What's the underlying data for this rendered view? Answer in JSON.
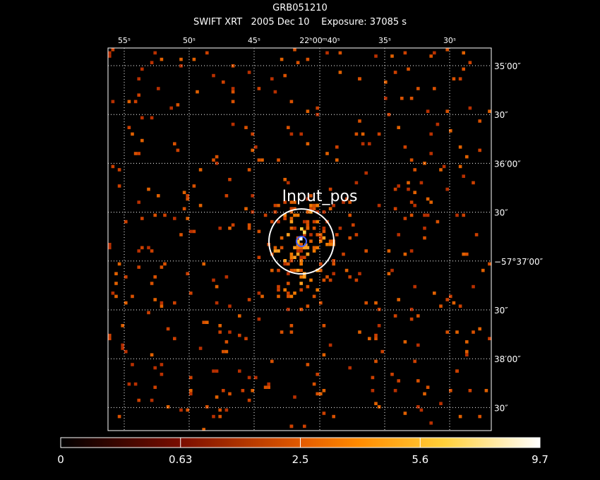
{
  "header": {
    "title": "GRB051210",
    "subtitle": "SWIFT XRT   2005 Dec 10    Exposure: 37085 s"
  },
  "ra_labels": [
    "55ˢ",
    "50ˢ",
    "45ˢ",
    "22ʰ00ᵐ40ˢ",
    "35ˢ",
    "30ˢ"
  ],
  "dec_labels": [
    "35′00″",
    "30″",
    "36′00″",
    "30″",
    "−57°37′00″",
    "30″",
    "38′00″",
    "30″"
  ],
  "annotation": "Input_pos",
  "colorbar": {
    "labels": [
      "0",
      "0.63",
      "2.5",
      "5.6",
      "9.7"
    ]
  }
}
